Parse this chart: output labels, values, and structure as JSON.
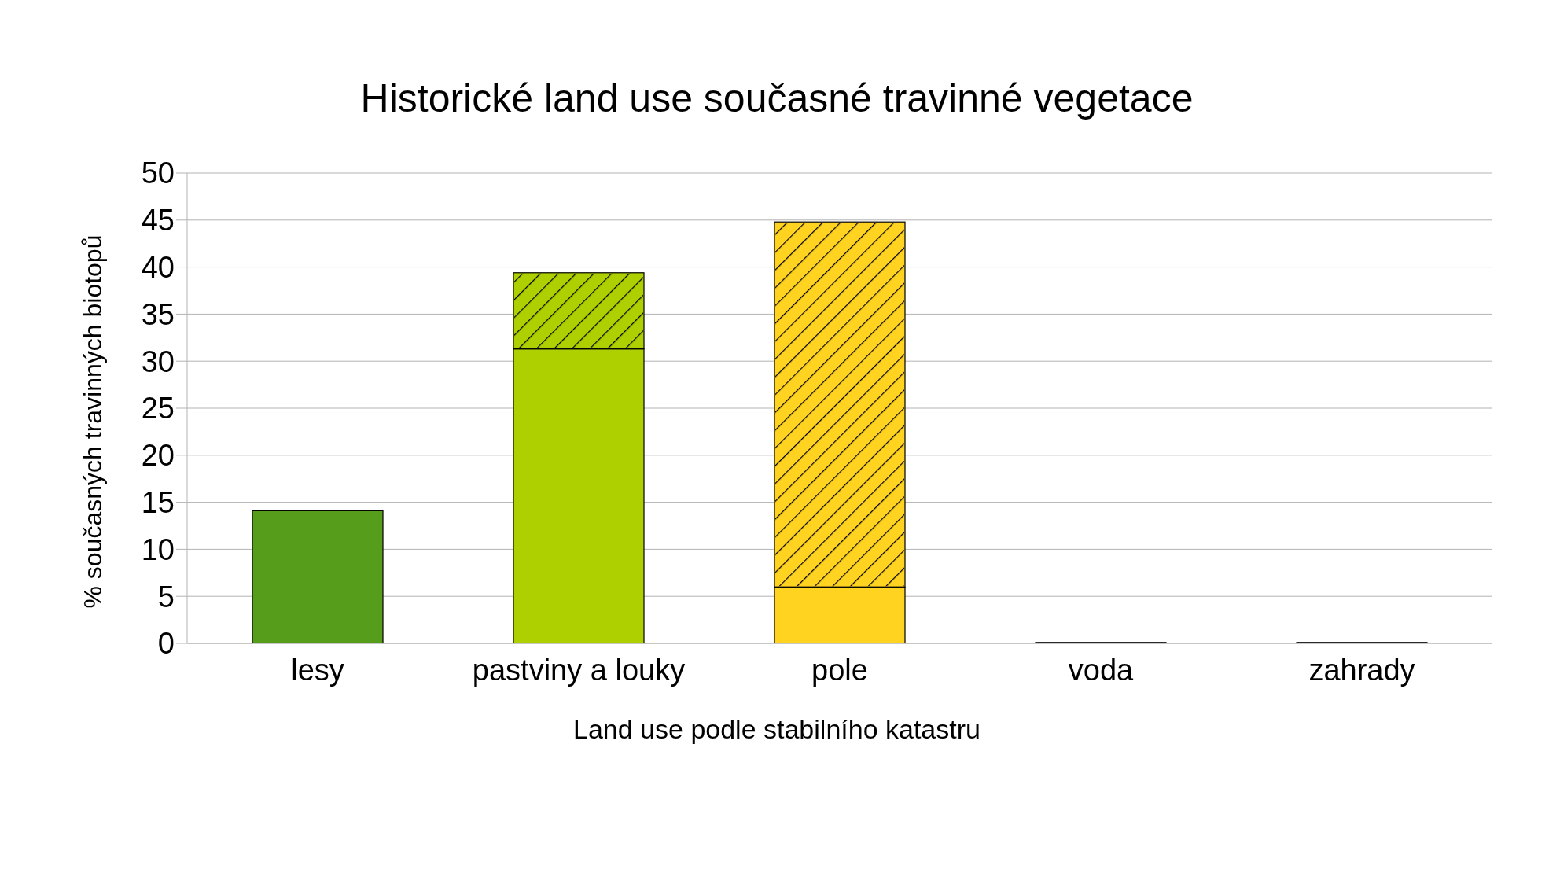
{
  "chart_data": {
    "type": "bar",
    "title": "Historické land use současné travinné vegetace",
    "xlabel": "Land use podle stabilního katastru",
    "ylabel": "% současných travinných biotopů",
    "categories": [
      "lesy",
      "pastviny a louky",
      "pole",
      "voda",
      "zahrady"
    ],
    "stacked": true,
    "series": [
      {
        "colors": [
          "#579d1c",
          "#aecf00",
          "#ffd320",
          "#004586",
          "#333333"
        ],
        "values": [
          14.1,
          31.3,
          6.0,
          0.1,
          0.1
        ]
      },
      {
        "colors": [
          "#579d1c",
          "#aecf00",
          "#ffd320",
          "#004586",
          "#333333"
        ],
        "values": [
          null,
          8.1,
          38.8,
          null,
          null
        ]
      }
    ],
    "ylim": [
      0,
      50
    ],
    "yticks": [
      0,
      5,
      10,
      15,
      20,
      25,
      30,
      35,
      40,
      45,
      50
    ],
    "grid": "y",
    "legend": false
  }
}
